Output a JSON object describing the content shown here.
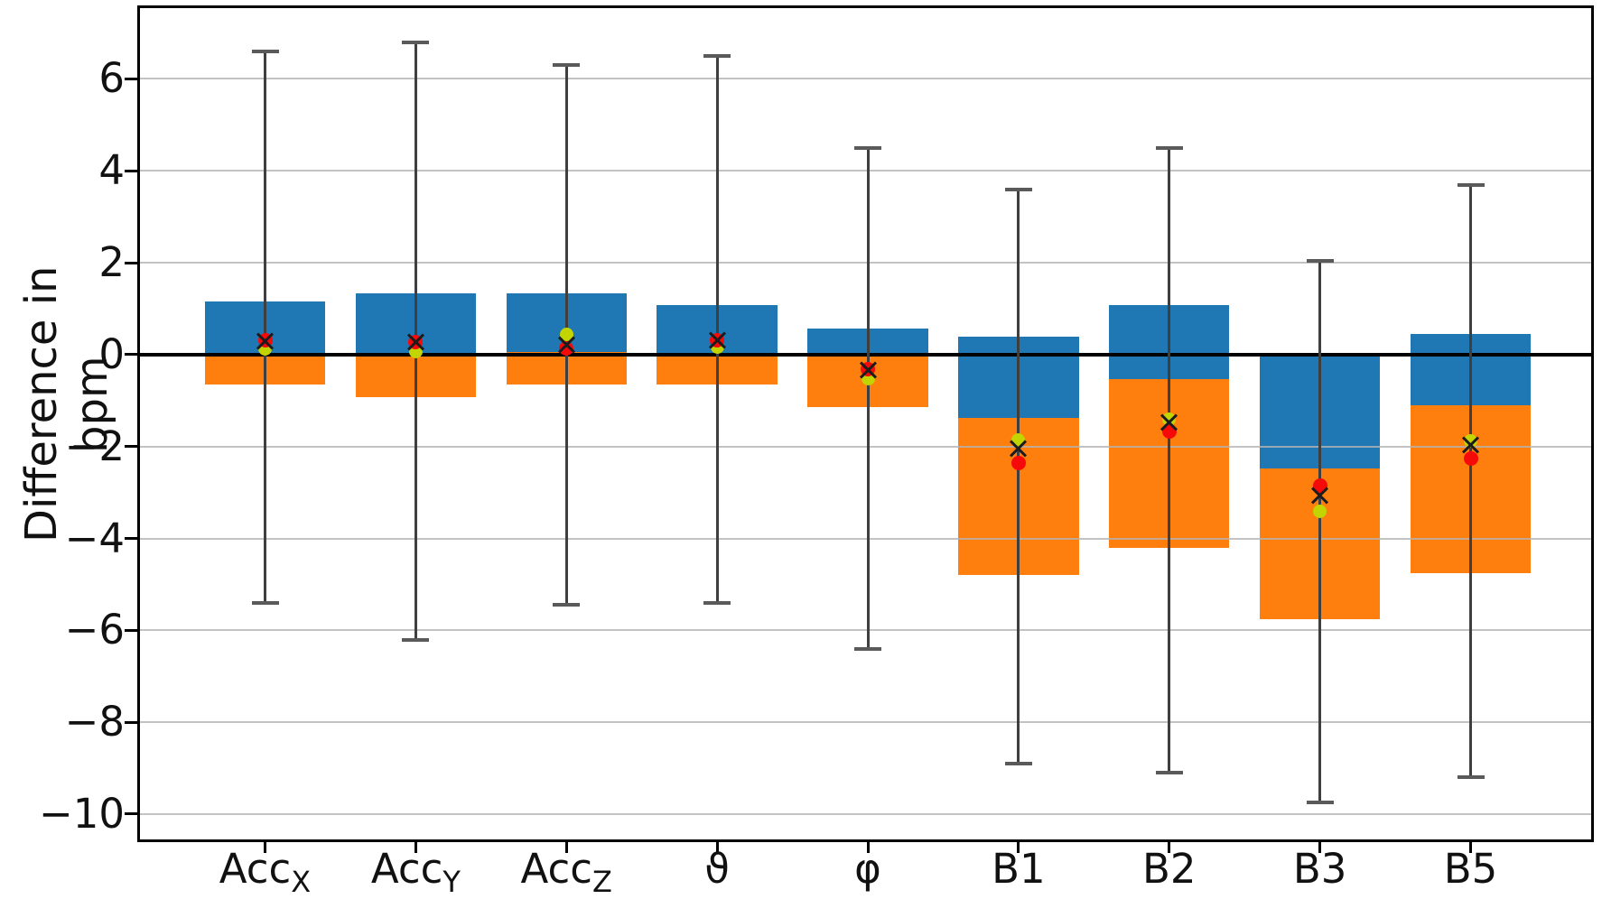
{
  "chart_data": {
    "type": "bar",
    "title": "",
    "xlabel": "",
    "ylabel": "Difference in bpm",
    "ylim": [
      -10.55,
      7.54
    ],
    "xlim": [
      -0.83,
      8.8
    ],
    "grid": true,
    "legend_position": "none",
    "bar_width_units": 0.8,
    "yticks": [
      {
        "label": "6",
        "value": 6
      },
      {
        "label": "4",
        "value": 4
      },
      {
        "label": "2",
        "value": 2
      },
      {
        "label": "0",
        "value": 0
      },
      {
        "label": "−2",
        "value": -2
      },
      {
        "label": "−4",
        "value": -4
      },
      {
        "label": "−6",
        "value": -6
      },
      {
        "label": "−8",
        "value": -8
      },
      {
        "label": "−10",
        "value": -10
      }
    ],
    "categories": [
      {
        "id": "AccX",
        "base": "Acc",
        "sub": "X"
      },
      {
        "id": "AccY",
        "base": "Acc",
        "sub": "Y"
      },
      {
        "id": "AccZ",
        "base": "Acc",
        "sub": "Z"
      },
      {
        "id": "theta",
        "base": "ϑ",
        "sub": ""
      },
      {
        "id": "phi",
        "base": "φ",
        "sub": ""
      },
      {
        "id": "B1",
        "base": "B1",
        "sub": ""
      },
      {
        "id": "B2",
        "base": "B2",
        "sub": ""
      },
      {
        "id": "B3",
        "base": "B3",
        "sub": ""
      },
      {
        "id": "B5",
        "base": "B5",
        "sub": ""
      }
    ],
    "bars": [
      {
        "category": "AccX",
        "box_upper_top": 1.15,
        "box_split": 0.0,
        "box_lower_bottom": -0.65,
        "whisker_high": 6.6,
        "whisker_low": -5.4,
        "marker_yellow_green": 0.12,
        "marker_x": 0.3,
        "marker_red": 0.31
      },
      {
        "category": "AccY",
        "box_upper_top": 1.33,
        "box_split": 0.0,
        "box_lower_bottom": -0.93,
        "whisker_high": 6.8,
        "whisker_low": -6.2,
        "marker_yellow_green": 0.06,
        "marker_x": 0.27,
        "marker_red": 0.28
      },
      {
        "category": "AccZ",
        "box_upper_top": 1.33,
        "box_split": 0.05,
        "box_lower_bottom": -0.65,
        "whisker_high": 6.3,
        "whisker_low": -5.45,
        "marker_yellow_green": 0.44,
        "marker_x": 0.21,
        "marker_red": 0.13
      },
      {
        "category": "theta",
        "box_upper_top": 1.08,
        "box_split": 0.0,
        "box_lower_bottom": -0.65,
        "whisker_high": 6.5,
        "whisker_low": -5.4,
        "marker_yellow_green": 0.16,
        "marker_x": 0.31,
        "marker_red": 0.31
      },
      {
        "category": "phi",
        "box_upper_top": 0.56,
        "box_split": 0.0,
        "box_lower_bottom": -1.14,
        "whisker_high": 4.5,
        "whisker_low": -6.4,
        "marker_yellow_green": -0.53,
        "marker_x": -0.33,
        "marker_red": -0.32
      },
      {
        "category": "B1",
        "box_upper_top": 0.4,
        "box_split": -1.37,
        "box_lower_bottom": -4.8,
        "whisker_high": 3.6,
        "whisker_low": -8.9,
        "marker_yellow_green": -1.85,
        "marker_x": -2.05,
        "marker_red": -2.35
      },
      {
        "category": "B2",
        "box_upper_top": 1.07,
        "box_split": -0.53,
        "box_lower_bottom": -4.2,
        "whisker_high": 4.5,
        "whisker_low": -9.1,
        "marker_yellow_green": -1.41,
        "marker_x": -1.47,
        "marker_red": -1.67
      },
      {
        "category": "B3",
        "box_upper_top": -0.05,
        "box_split": -2.48,
        "box_lower_bottom": -5.75,
        "whisker_high": 2.05,
        "whisker_low": -9.75,
        "marker_yellow_green": -3.42,
        "marker_x": -3.07,
        "marker_red": -2.85
      },
      {
        "category": "B5",
        "box_upper_top": 0.44,
        "box_split": -1.1,
        "box_lower_bottom": -4.75,
        "whisker_high": 3.7,
        "whisker_low": -9.2,
        "marker_yellow_green": -1.87,
        "marker_x": -1.97,
        "marker_red": -2.26
      }
    ],
    "colors": {
      "bar_upper": "#1f77b4",
      "bar_lower": "#ff7f0e",
      "whisker": "#3f3f3f",
      "whisker_cap": "#5a5a5a",
      "marker_red": "#f60909",
      "marker_yellow_green": "#c2d500",
      "marker_x": "#1c1c1c",
      "zero_line": "#000000",
      "gridline": "#b4b4b4",
      "axis": "#000000"
    }
  }
}
